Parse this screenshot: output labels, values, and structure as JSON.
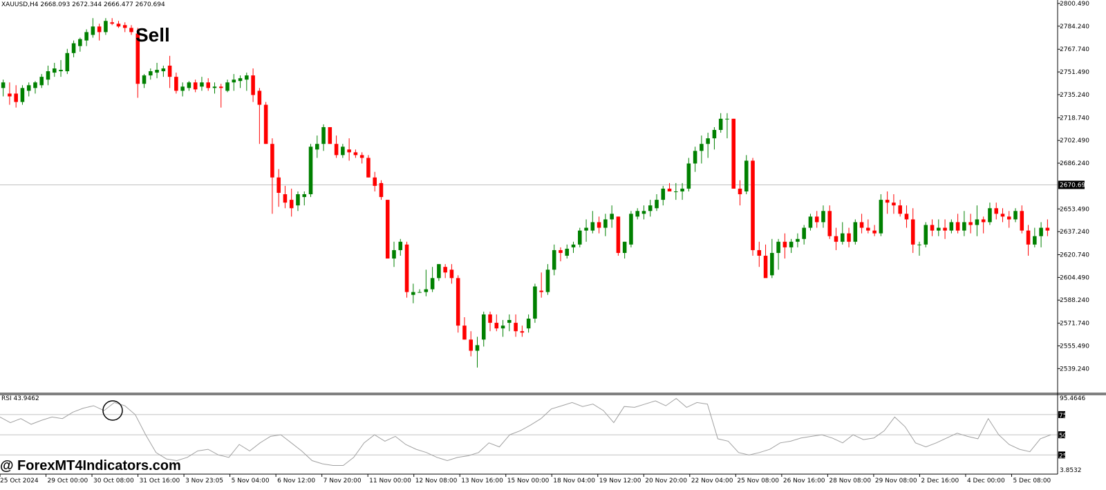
{
  "window": {
    "symbol_header": "XAUUSD,H4  2668.093 2672.344 2666.477 2670.694"
  },
  "annotations": {
    "sell_label": "Sell",
    "watermark": "@ ForexMT4Indicators.com"
  },
  "price_axis": {
    "min": 2531,
    "max": 2800,
    "ticks": [
      "2800.490",
      "2784.240",
      "2767.740",
      "2751.490",
      "2735.240",
      "2718.740",
      "2702.490",
      "2686.240",
      "2653.490",
      "2637.240",
      "2620.740",
      "2604.490",
      "2588.240",
      "2571.740",
      "2555.490",
      "2539.240"
    ],
    "current_price": "2670.694"
  },
  "rsi": {
    "label": "RSI 43.9462",
    "max_label": "95.4646",
    "levels": [
      "75",
      "50",
      "25"
    ],
    "min_label": "3.8532",
    "values": [
      72,
      65,
      70,
      63,
      68,
      72,
      70,
      78,
      83,
      86,
      80,
      90,
      86,
      75,
      50,
      28,
      20,
      18,
      22,
      30,
      32,
      25,
      22,
      38,
      30,
      40,
      48,
      50,
      40,
      30,
      18,
      14,
      12,
      12,
      22,
      40,
      50,
      42,
      48,
      38,
      32,
      28,
      22,
      18,
      22,
      24,
      28,
      40,
      35,
      50,
      55,
      62,
      70,
      82,
      86,
      90,
      85,
      88,
      80,
      65,
      85,
      84,
      88,
      92,
      86,
      95,
      84,
      90,
      88,
      45,
      42,
      28,
      25,
      28,
      32,
      40,
      42,
      46,
      48,
      50,
      46,
      40,
      50,
      44,
      46,
      55,
      72,
      60,
      40,
      35,
      40,
      46,
      52,
      48,
      45,
      70,
      50,
      38,
      32,
      29,
      45,
      50
    ]
  },
  "time_axis": {
    "labels": [
      "25 Oct 2024",
      "29 Oct 00:00",
      "30 Oct 08:00",
      "31 Oct 16:00",
      "3 Nov 23:05",
      "5 Nov 04:00",
      "6 Nov 12:00",
      "7 Nov 20:00",
      "11 Nov 00:00",
      "12 Nov 08:00",
      "13 Nov 16:00",
      "15 Nov 00:00",
      "18 Nov 04:00",
      "19 Nov 12:00",
      "20 Nov 20:00",
      "22 Nov 04:00",
      "25 Nov 08:00",
      "26 Nov 16:00",
      "28 Nov 08:00",
      "29 Nov 08:00",
      "2 Dec 16:00",
      "4 Dec 00:00",
      "5 Dec 08:00"
    ]
  },
  "colors": {
    "bull": "#008000",
    "bear": "#ff0000",
    "grid_line": "#c0c0c0",
    "rsi_line": "#a0a0a0"
  },
  "chart_data": {
    "type": "candlestick",
    "series": [
      {
        "name": "XAUUSD,H4",
        "ohlc": [
          [
            2740,
            2746,
            2734,
            2744
          ],
          [
            2736,
            2744,
            2728,
            2734
          ],
          [
            2736,
            2742,
            2726,
            2730
          ],
          [
            2730,
            2742,
            2728,
            2740
          ],
          [
            2738,
            2744,
            2734,
            2742
          ],
          [
            2740,
            2745,
            2736,
            2744
          ],
          [
            2742,
            2750,
            2740,
            2748
          ],
          [
            2746,
            2756,
            2742,
            2752
          ],
          [
            2751,
            2758,
            2748,
            2754
          ],
          [
            2752,
            2760,
            2748,
            2753
          ],
          [
            2752,
            2768,
            2750,
            2765
          ],
          [
            2765,
            2774,
            2762,
            2772
          ],
          [
            2770,
            2776,
            2766,
            2775
          ],
          [
            2774,
            2782,
            2770,
            2780
          ],
          [
            2778,
            2790,
            2776,
            2784
          ],
          [
            2784,
            2786,
            2774,
            2780
          ],
          [
            2780,
            2790,
            2778,
            2788
          ],
          [
            2787,
            2790,
            2785,
            2786
          ],
          [
            2786,
            2788,
            2783,
            2784
          ],
          [
            2785,
            2787,
            2780,
            2783
          ],
          [
            2783,
            2785,
            2778,
            2780
          ],
          [
            2779,
            2783,
            2733,
            2743
          ],
          [
            2743,
            2750,
            2740,
            2749
          ],
          [
            2749,
            2754,
            2746,
            2752
          ],
          [
            2751,
            2758,
            2747,
            2753
          ],
          [
            2752,
            2756,
            2748,
            2754
          ],
          [
            2756,
            2763,
            2740,
            2748
          ],
          [
            2748,
            2751,
            2736,
            2738
          ],
          [
            2738,
            2744,
            2734,
            2741
          ],
          [
            2740,
            2745,
            2738,
            2744
          ],
          [
            2744,
            2746,
            2737,
            2739
          ],
          [
            2741,
            2748,
            2738,
            2744
          ],
          [
            2744,
            2747,
            2738,
            2740
          ],
          [
            2740,
            2744,
            2736,
            2741
          ],
          [
            2741,
            2743,
            2726,
            2740
          ],
          [
            2738,
            2746,
            2737,
            2744
          ],
          [
            2744,
            2750,
            2738,
            2746
          ],
          [
            2745,
            2749,
            2740,
            2747
          ],
          [
            2746,
            2751,
            2738,
            2749
          ],
          [
            2749,
            2754,
            2730,
            2735
          ],
          [
            2738,
            2740,
            2700,
            2728
          ],
          [
            2728,
            2730,
            2700,
            2700
          ],
          [
            2700,
            2704,
            2650,
            2676
          ],
          [
            2676,
            2682,
            2655,
            2665
          ],
          [
            2664,
            2670,
            2654,
            2658
          ],
          [
            2660,
            2668,
            2648,
            2654
          ],
          [
            2656,
            2666,
            2652,
            2664
          ],
          [
            2662,
            2666,
            2656,
            2664
          ],
          [
            2664,
            2700,
            2662,
            2698
          ],
          [
            2696,
            2706,
            2690,
            2700
          ],
          [
            2700,
            2714,
            2695,
            2712
          ],
          [
            2712,
            2712,
            2700,
            2700
          ],
          [
            2700,
            2706,
            2690,
            2692
          ],
          [
            2692,
            2700,
            2690,
            2698
          ],
          [
            2696,
            2704,
            2688,
            2694
          ],
          [
            2694,
            2696,
            2690,
            2692
          ],
          [
            2692,
            2694,
            2686,
            2690
          ],
          [
            2690,
            2692,
            2676,
            2676
          ],
          [
            2676,
            2680,
            2666,
            2670
          ],
          [
            2672,
            2674,
            2660,
            2662
          ],
          [
            2660,
            2660,
            2618,
            2618
          ],
          [
            2618,
            2630,
            2612,
            2624
          ],
          [
            2624,
            2632,
            2620,
            2630
          ],
          [
            2628,
            2630,
            2590,
            2594
          ],
          [
            2592,
            2600,
            2586,
            2594
          ],
          [
            2594,
            2596,
            2594,
            2594
          ],
          [
            2594,
            2610,
            2591,
            2596
          ],
          [
            2596,
            2612,
            2594,
            2604
          ],
          [
            2604,
            2614,
            2602,
            2614
          ],
          [
            2612,
            2614,
            2604,
            2608
          ],
          [
            2610,
            2614,
            2600,
            2604
          ],
          [
            2604,
            2606,
            2565,
            2570
          ],
          [
            2570,
            2576,
            2560,
            2560
          ],
          [
            2560,
            2566,
            2548,
            2552
          ],
          [
            2552,
            2562,
            2540,
            2556
          ],
          [
            2560,
            2580,
            2555,
            2578
          ],
          [
            2578,
            2580,
            2566,
            2572
          ],
          [
            2572,
            2578,
            2566,
            2568
          ],
          [
            2568,
            2574,
            2562,
            2570
          ],
          [
            2572,
            2578,
            2566,
            2574
          ],
          [
            2572,
            2578,
            2562,
            2566
          ],
          [
            2566,
            2570,
            2562,
            2565
          ],
          [
            2568,
            2578,
            2565,
            2575
          ],
          [
            2575,
            2600,
            2572,
            2598
          ],
          [
            2595,
            2608,
            2590,
            2594
          ],
          [
            2594,
            2614,
            2592,
            2610
          ],
          [
            2610,
            2628,
            2606,
            2624
          ],
          [
            2624,
            2626,
            2616,
            2622
          ],
          [
            2620,
            2628,
            2618,
            2625
          ],
          [
            2626,
            2630,
            2622,
            2628
          ],
          [
            2628,
            2640,
            2626,
            2638
          ],
          [
            2638,
            2646,
            2630,
            2640
          ],
          [
            2638,
            2652,
            2636,
            2644
          ],
          [
            2644,
            2648,
            2636,
            2640
          ],
          [
            2640,
            2650,
            2634,
            2646
          ],
          [
            2646,
            2656,
            2640,
            2650
          ],
          [
            2648,
            2648,
            2620,
            2622
          ],
          [
            2622,
            2630,
            2618,
            2630
          ],
          [
            2628,
            2652,
            2626,
            2650
          ],
          [
            2648,
            2654,
            2646,
            2652
          ],
          [
            2650,
            2656,
            2646,
            2652
          ],
          [
            2652,
            2660,
            2648,
            2656
          ],
          [
            2654,
            2664,
            2652,
            2660
          ],
          [
            2660,
            2670,
            2656,
            2668
          ],
          [
            2668,
            2672,
            2666,
            2666
          ],
          [
            2666,
            2672,
            2660,
            2666
          ],
          [
            2666,
            2672,
            2660,
            2668
          ],
          [
            2668,
            2690,
            2666,
            2686
          ],
          [
            2686,
            2698,
            2680,
            2695
          ],
          [
            2695,
            2706,
            2686,
            2700
          ],
          [
            2700,
            2708,
            2690,
            2704
          ],
          [
            2704,
            2712,
            2696,
            2710
          ],
          [
            2710,
            2722,
            2708,
            2718
          ],
          [
            2718,
            2722,
            2704,
            2718
          ],
          [
            2718,
            2718,
            2668,
            2668
          ],
          [
            2668,
            2674,
            2656,
            2664
          ],
          [
            2666,
            2692,
            2664,
            2688
          ],
          [
            2688,
            2690,
            2620,
            2624
          ],
          [
            2624,
            2630,
            2612,
            2620
          ],
          [
            2620,
            2628,
            2606,
            2604
          ],
          [
            2606,
            2632,
            2604,
            2622
          ],
          [
            2622,
            2632,
            2610,
            2630
          ],
          [
            2630,
            2636,
            2618,
            2626
          ],
          [
            2626,
            2632,
            2622,
            2630
          ],
          [
            2630,
            2636,
            2626,
            2632
          ],
          [
            2632,
            2642,
            2628,
            2640
          ],
          [
            2640,
            2650,
            2638,
            2648
          ],
          [
            2648,
            2652,
            2640,
            2644
          ],
          [
            2644,
            2656,
            2640,
            2652
          ],
          [
            2652,
            2656,
            2632,
            2634
          ],
          [
            2634,
            2640,
            2624,
            2630
          ],
          [
            2630,
            2644,
            2628,
            2636
          ],
          [
            2636,
            2640,
            2626,
            2630
          ],
          [
            2630,
            2646,
            2628,
            2644
          ],
          [
            2644,
            2650,
            2636,
            2640
          ],
          [
            2640,
            2646,
            2636,
            2638
          ],
          [
            2638,
            2642,
            2634,
            2636
          ],
          [
            2636,
            2664,
            2634,
            2660
          ],
          [
            2660,
            2666,
            2650,
            2658
          ],
          [
            2658,
            2664,
            2650,
            2656
          ],
          [
            2656,
            2660,
            2648,
            2650
          ],
          [
            2650,
            2656,
            2640,
            2646
          ],
          [
            2646,
            2654,
            2622,
            2628
          ],
          [
            2628,
            2630,
            2620,
            2628
          ],
          [
            2628,
            2644,
            2626,
            2642
          ],
          [
            2642,
            2646,
            2634,
            2638
          ],
          [
            2638,
            2646,
            2634,
            2640
          ],
          [
            2640,
            2646,
            2632,
            2638
          ],
          [
            2638,
            2646,
            2636,
            2644
          ],
          [
            2644,
            2650,
            2636,
            2638
          ],
          [
            2638,
            2652,
            2634,
            2644
          ],
          [
            2644,
            2650,
            2636,
            2642
          ],
          [
            2642,
            2656,
            2634,
            2646
          ],
          [
            2646,
            2648,
            2636,
            2644
          ],
          [
            2644,
            2658,
            2642,
            2654
          ],
          [
            2654,
            2658,
            2646,
            2650
          ],
          [
            2650,
            2654,
            2644,
            2648
          ],
          [
            2648,
            2652,
            2640,
            2646
          ],
          [
            2646,
            2654,
            2644,
            2652
          ],
          [
            2652,
            2656,
            2636,
            2638
          ],
          [
            2638,
            2642,
            2620,
            2628
          ],
          [
            2628,
            2640,
            2626,
            2634
          ],
          [
            2634,
            2644,
            2626,
            2640
          ],
          [
            2640,
            2646,
            2634,
            2638
          ]
        ]
      }
    ]
  }
}
